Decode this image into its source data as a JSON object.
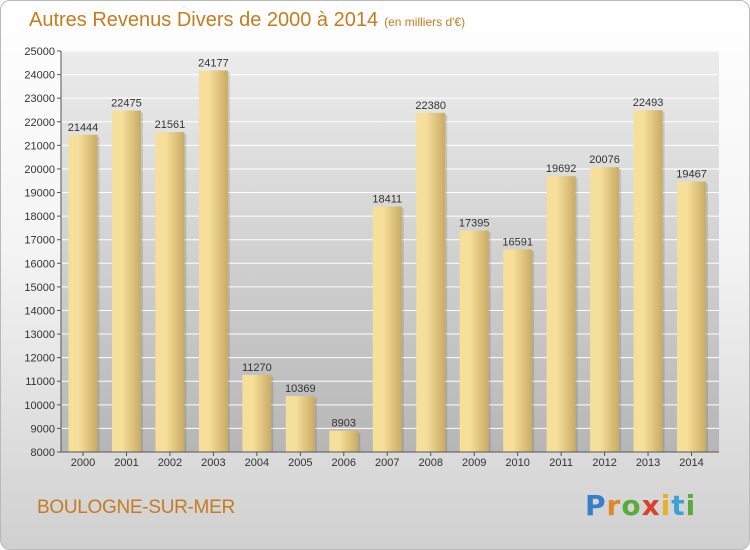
{
  "title": "Autres Revenus Divers de 2000 à 2014",
  "unit": "(en milliers d'€)",
  "city": "BOULOGNE-SUR-MER",
  "logo": {
    "letters": [
      "P",
      "r",
      "o",
      "x",
      "i",
      "t",
      "i"
    ],
    "colors": [
      "#3a7dc8",
      "#e0862a",
      "#5aaa3c",
      "#d9412f",
      "#e6b12a",
      "#3aa3d6",
      "#5aaa3c"
    ]
  },
  "colors": {
    "title": "#c77b1f",
    "bar_light": "#f6df9a",
    "bar_dark": "#c9ab63",
    "plot_top": "#ececec",
    "plot_bottom": "#b6b6b6"
  },
  "chart_data": {
    "type": "bar",
    "categories": [
      "2000",
      "2001",
      "2002",
      "2003",
      "2004",
      "2005",
      "2006",
      "2007",
      "2008",
      "2009",
      "2010",
      "2011",
      "2012",
      "2013",
      "2014"
    ],
    "values": [
      21444,
      22475,
      21561,
      24177,
      11270,
      10369,
      8903,
      18411,
      22380,
      17395,
      16591,
      19692,
      20076,
      22493,
      19467
    ],
    "ylim": [
      8000,
      25000
    ],
    "yticks": [
      8000,
      9000,
      10000,
      11000,
      12000,
      13000,
      14000,
      15000,
      16000,
      17000,
      18000,
      19000,
      20000,
      21000,
      22000,
      23000,
      24000,
      25000
    ],
    "grid": true,
    "data_labels": true
  }
}
